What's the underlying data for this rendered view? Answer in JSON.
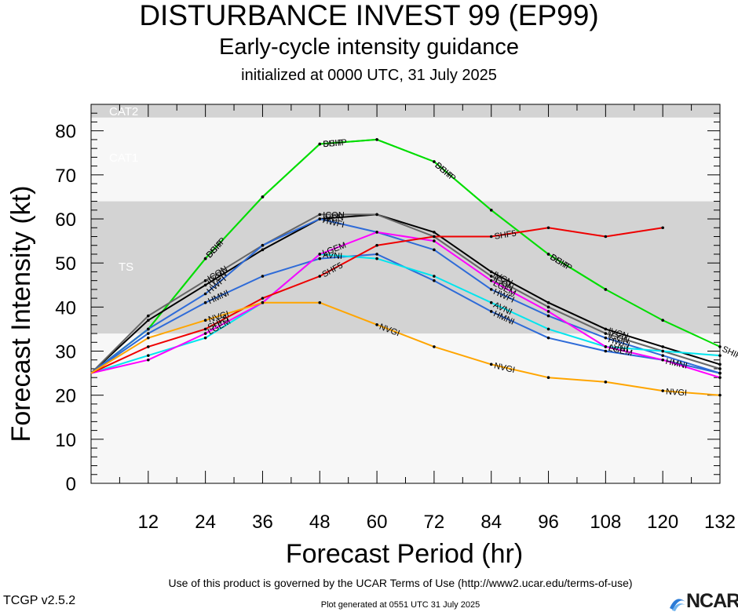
{
  "title": "DISTURBANCE INVEST 99 (EP99)",
  "subtitle": "Early-cycle intensity guidance",
  "initialized": "initialized at 0000 UTC, 31 July 2025",
  "terms": "Use of this product is governed by the UCAR Terms of Use (http://www2.ucar.edu/terms-of-use)",
  "version": "TCGP v2.5.2",
  "generated": "Plot generated at 0551 UTC   31 July 2025",
  "logo_text": "NCAR",
  "chart_data": {
    "type": "line",
    "xlabel": "Forecast Period (hr)",
    "ylabel": "Forecast Intensity (kt)",
    "xlim": [
      0,
      132
    ],
    "ylim": [
      0,
      86
    ],
    "xticks": [
      12,
      24,
      36,
      48,
      60,
      72,
      84,
      96,
      108,
      120,
      132
    ],
    "yticks": [
      0,
      10,
      20,
      30,
      40,
      50,
      60,
      70,
      80
    ],
    "grid": false,
    "bands": [
      {
        "label": "TS",
        "from": 34,
        "to": 64,
        "color": "#d3d3d3"
      },
      {
        "label": "CAT1",
        "from": 64,
        "to": 83,
        "color": "#f7f7f7"
      },
      {
        "label": "CAT2",
        "from": 83,
        "to": 86,
        "color": "#d3d3d3"
      }
    ],
    "series": [
      {
        "name": "SHIP",
        "color": "#00dd00",
        "label_hours": [
          24,
          48,
          72,
          96,
          132
        ],
        "x": [
          0,
          12,
          24,
          36,
          48,
          60,
          72,
          84,
          96,
          108,
          120,
          132
        ],
        "values": [
          25,
          35,
          51,
          65,
          77,
          78,
          73,
          62,
          52,
          44,
          37,
          31
        ]
      },
      {
        "name": "DSHP",
        "color": "#00dd00",
        "label_hours": [
          24,
          48,
          72,
          96
        ],
        "x": [
          0,
          12,
          24,
          36,
          48,
          60,
          72,
          84,
          96,
          108
        ],
        "values": [
          25,
          35,
          51,
          65,
          77,
          78,
          73,
          62,
          52,
          44
        ]
      },
      {
        "name": "IVCN",
        "color": "#000000",
        "label_hours": [
          24,
          48,
          84,
          108
        ],
        "x": [
          0,
          12,
          24,
          36,
          48,
          60,
          72,
          84,
          96,
          108,
          120,
          132
        ],
        "values": [
          25,
          37,
          45,
          53,
          60,
          61,
          57,
          48,
          41,
          35,
          31,
          27
        ]
      },
      {
        "name": "ICON",
        "color": "#666666",
        "label_hours": [
          24,
          48,
          84,
          108
        ],
        "x": [
          0,
          12,
          24,
          36,
          48,
          60,
          72,
          84,
          96,
          108,
          120,
          132
        ],
        "values": [
          25,
          38,
          46,
          54,
          61,
          61,
          56,
          47,
          40,
          34,
          30,
          26
        ]
      },
      {
        "name": "HWFI",
        "color": "#2e6bd8",
        "label_hours": [
          24,
          48,
          84,
          108
        ],
        "x": [
          0,
          12,
          24,
          36,
          48,
          60,
          72,
          84,
          96,
          108,
          120,
          132
        ],
        "values": [
          25,
          35,
          43,
          54,
          60,
          57,
          53,
          44,
          38,
          33,
          29,
          25
        ]
      },
      {
        "name": "HMNI",
        "color": "#2e6bd8",
        "label_hours": [
          24,
          84,
          120
        ],
        "x": [
          0,
          12,
          24,
          36,
          48,
          60,
          72,
          84,
          96,
          108,
          120,
          132
        ],
        "values": [
          25,
          34,
          41,
          47,
          51,
          52,
          46,
          39,
          33,
          30,
          28,
          25
        ]
      },
      {
        "name": "AVNI",
        "color": "#00e5ee",
        "label_hours": [
          48,
          84,
          108
        ],
        "x": [
          0,
          12,
          24,
          36,
          48,
          60,
          72,
          84,
          96,
          108,
          120,
          132
        ],
        "values": [
          25,
          29,
          33,
          41,
          52,
          51,
          47,
          41,
          35,
          31,
          30,
          29
        ]
      },
      {
        "name": "LGEM",
        "color": "#ff00ff",
        "label_hours": [
          24,
          48,
          84,
          108
        ],
        "x": [
          0,
          12,
          24,
          36,
          48,
          60,
          72,
          84,
          96,
          108,
          120,
          132
        ],
        "values": [
          25,
          28,
          34,
          41,
          52,
          57,
          55,
          46,
          39,
          31,
          28,
          24
        ]
      },
      {
        "name": "SHF5",
        "color": "#ee0000",
        "label_hours": [
          24,
          48,
          84
        ],
        "x": [
          0,
          12,
          24,
          36,
          48,
          60,
          72,
          84,
          96,
          108,
          120
        ],
        "values": [
          25,
          31,
          35,
          42,
          47,
          54,
          56,
          56,
          58,
          56,
          58
        ]
      },
      {
        "name": "NVGI",
        "color": "#ffa500",
        "label_hours": [
          24,
          60,
          84,
          120
        ],
        "x": [
          0,
          12,
          24,
          36,
          48,
          60,
          72,
          84,
          96,
          108,
          120,
          132
        ],
        "values": [
          25,
          33,
          37,
          41,
          41,
          36,
          31,
          27,
          24,
          23,
          21,
          20
        ]
      }
    ]
  }
}
